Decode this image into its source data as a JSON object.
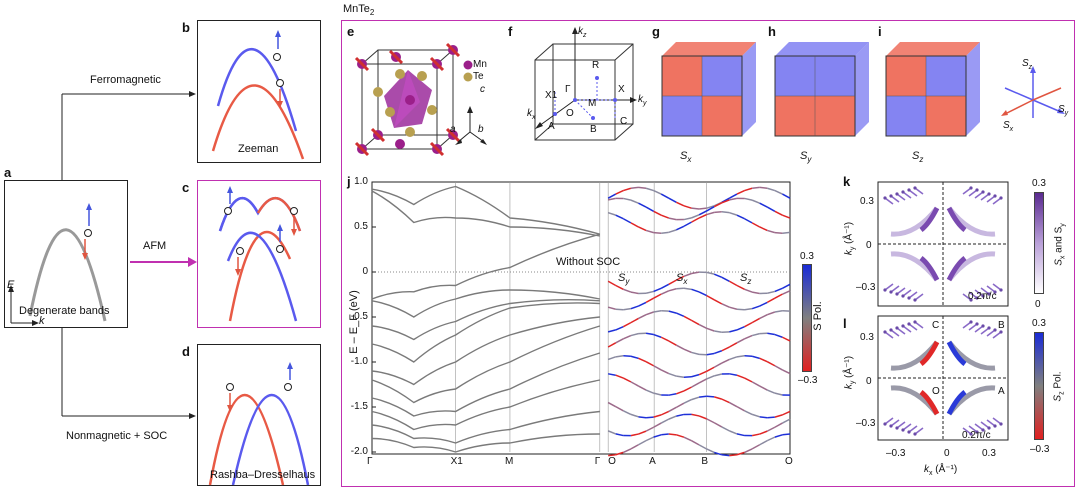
{
  "panel_labels": {
    "a": "a",
    "b": "b",
    "c": "c",
    "d": "d",
    "e": "e",
    "f": "f",
    "g": "g",
    "h": "h",
    "i": "i",
    "j": "j",
    "k": "k",
    "l": "l"
  },
  "panel_a": {
    "caption": "Degenerate bands",
    "axis_e": "E",
    "axis_k": "k"
  },
  "arrows": {
    "ferro": "Ferromagnetic",
    "afm": "AFM",
    "nonmag": "Nonmagnetic + SOC"
  },
  "panel_b": {
    "caption": "Zeeman"
  },
  "panel_d": {
    "caption": "Rashba–Dresselhaus"
  },
  "material": {
    "name": "MnTe",
    "subscript": "2"
  },
  "panel_e": {
    "legend_mn": "Mn",
    "legend_te": "Te",
    "axis_a": "a",
    "axis_b": "b",
    "axis_c": "c"
  },
  "panel_f": {
    "kz": "k",
    "kz_sub": "z",
    "ky": "k",
    "ky_sub": "y",
    "kx": "k",
    "kx_sub": "x",
    "pts": {
      "R": "R",
      "X1": "X1",
      "Gamma": "Γ",
      "M": "M",
      "X": "X",
      "A": "A",
      "O": "O",
      "B": "B",
      "C": "C"
    }
  },
  "cubes": {
    "g": {
      "name": "S",
      "sub": "x"
    },
    "h": {
      "name": "S",
      "sub": "y"
    },
    "i": {
      "name": "S",
      "sub": "z"
    }
  },
  "spin_axes": {
    "sz": "S",
    "sz_sub": "z",
    "sx": "S",
    "sx_sub": "x",
    "sy": "S",
    "sy_sub": "y"
  },
  "chart_data": {
    "type": "line",
    "title": "",
    "ylabel": "E – E_F (eV)",
    "ylim": [
      -2.0,
      1.0
    ],
    "yticks": [
      "1.0",
      "0.5",
      "0",
      "-0.5",
      "-1.0",
      "-1.5",
      "-2.0"
    ],
    "xticks": [
      "Γ",
      "X1",
      "M",
      "Γ",
      "O",
      "A",
      "B",
      "O"
    ],
    "annotations": {
      "without_soc": "Without SOC",
      "sy": "S",
      "sy_sub": "y",
      "sx": "S",
      "sx_sub": "x",
      "sz": "S",
      "sz_sub": "z"
    },
    "colorbar": {
      "max": "0.3",
      "min": "–0.3",
      "label": "S Pol."
    }
  },
  "panel_k": {
    "ylabel": "k",
    "ylabel_sub": "y",
    "yunit": "(Å⁻¹)",
    "yticks": [
      "0.3",
      "0",
      "–0.3"
    ],
    "scale": "0.2π/c",
    "cbar_max": "0.3",
    "cbar_min": "0",
    "cbar_label": "S",
    "cbar_label_rest": "and S",
    "cbar_sub1": "x",
    "cbar_sub2": "y"
  },
  "panel_l": {
    "ylabel": "k",
    "ylabel_sub": "y",
    "yunit": "(Å⁻¹)",
    "yticks": [
      "0.3",
      "0",
      "–0.3"
    ],
    "xticks": [
      "–0.3",
      "0",
      "0.3"
    ],
    "xlabel": "k",
    "xlabel_sub": "x",
    "xunit": "(Å⁻¹)",
    "scale": "0.2π/c",
    "pts": {
      "C": "C",
      "B": "B",
      "O": "O",
      "A": "A"
    },
    "cbar_max": "0.3",
    "cbar_min": "–0.3",
    "cbar_label": "S",
    "cbar_sub": "z",
    "cbar_label_rest": "Pol."
  }
}
